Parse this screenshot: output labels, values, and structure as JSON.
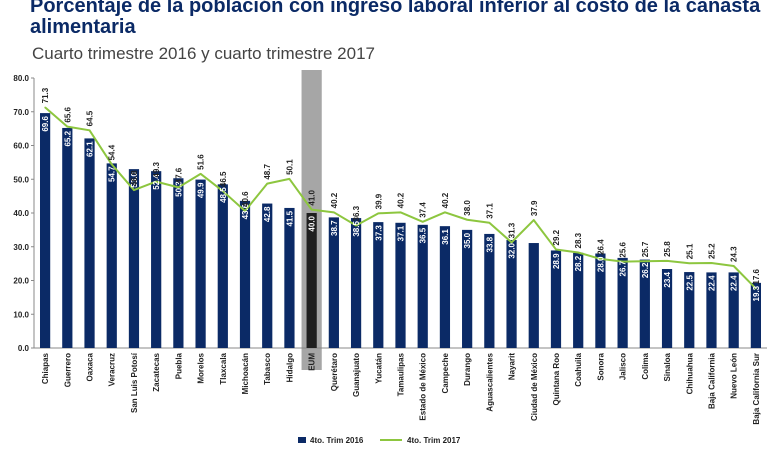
{
  "title": "Porcentaje de la población con ingreso laboral inferior al costo de la canasta alimentaria",
  "subtitle": "Cuarto trimestre 2016 y cuarto trimestre 2017",
  "chart_data": {
    "type": "bar",
    "title": "Porcentaje de la población con ingreso laboral inferior al costo de la canasta alimentaria",
    "subtitle": "Cuarto trimestre 2016 y cuarto trimestre 2017",
    "categories": [
      "Chiapas",
      "Guerrero",
      "Oaxaca",
      "Veracruz",
      "San Luis Potosí",
      "Zacatecas",
      "Puebla",
      "Morelos",
      "Tlaxcala",
      "Michoacán",
      "Tabasco",
      "Hidalgo",
      "EUM",
      "Querétaro",
      "Guanajuato",
      "Yucatán",
      "Tamaulipas",
      "Estado de México",
      "Campeche",
      "Durango",
      "Aguascalientes",
      "Nayarit",
      "Ciudad de México",
      "Quintana Roo",
      "Coahuila",
      "Sonora",
      "Jalisco",
      "Colima",
      "Sinaloa",
      "Chihuahua",
      "Baja California",
      "Nuevo León",
      "Baja California Sur"
    ],
    "series": [
      {
        "name": "4to. Trim 2016",
        "type": "bar",
        "color": "#0b2a66",
        "values": [
          69.6,
          65.2,
          62.1,
          54.7,
          53.0,
          52.4,
          50.3,
          49.9,
          48.5,
          43.6,
          42.8,
          41.5,
          40.0,
          38.7,
          38.5,
          37.3,
          37.1,
          36.5,
          36.1,
          35.0,
          33.8,
          32.0,
          31.1,
          28.9,
          28.2,
          28.0,
          26.7,
          26.2,
          23.4,
          22.5,
          22.4,
          22.4,
          19.3
        ],
        "labels": [
          "69.6",
          "65.2",
          "62.1",
          "54.7",
          "53.0",
          "52.4",
          "50.3",
          "49.9",
          "48.5",
          "43.6",
          "42.8",
          "41.5",
          "40.0",
          "38.7",
          "38.5",
          "37.3",
          "37.1",
          "36.5",
          "36.1",
          "35.0",
          "33.8",
          "32.0",
          "",
          "28.9",
          "28.2",
          "28.0",
          "26.7",
          "26.2",
          "23.4",
          "22.5",
          "22.4",
          "22.4",
          "19.3"
        ]
      },
      {
        "name": "4to. Trim 2017",
        "type": "line",
        "color": "#8dc63f",
        "values": [
          71.3,
          65.6,
          64.5,
          54.4,
          46.8,
          49.3,
          47.6,
          51.6,
          46.5,
          40.6,
          48.7,
          50.1,
          41.0,
          40.2,
          36.3,
          39.9,
          40.2,
          37.4,
          40.2,
          38.0,
          37.1,
          31.3,
          37.9,
          29.2,
          28.3,
          26.4,
          25.6,
          25.7,
          25.8,
          25.1,
          25.2,
          24.3,
          17.6
        ],
        "labels": [
          "71.3",
          "65.6",
          "64.5",
          "54.4",
          "46.8",
          "49.3",
          "47.6",
          "51.6",
          "46.5",
          "40.6",
          "48.7",
          "50.1",
          "41.0",
          "40.2",
          "36.3",
          "39.9",
          "40.2",
          "37.4",
          "40.2",
          "38.0",
          "37.1",
          "31.3",
          "37.9",
          "29.2",
          "28.3",
          "26.4",
          "25.6",
          "25.7",
          "25.8",
          "25.1",
          "25.2",
          "24.3",
          "17.6"
        ]
      }
    ],
    "highlight_category": "EUM",
    "highlight_color": "#a6a6a6",
    "highlight_bar_color": "#1f1f1f",
    "y_ticks": [
      "0.0",
      "10.0",
      "20.0",
      "30.0",
      "40.0",
      "50.0",
      "60.0",
      "70.0",
      "80.0"
    ],
    "ylim": [
      0,
      80
    ],
    "grid": false,
    "legend_position": "bottom",
    "xlabel": "",
    "ylabel": ""
  }
}
